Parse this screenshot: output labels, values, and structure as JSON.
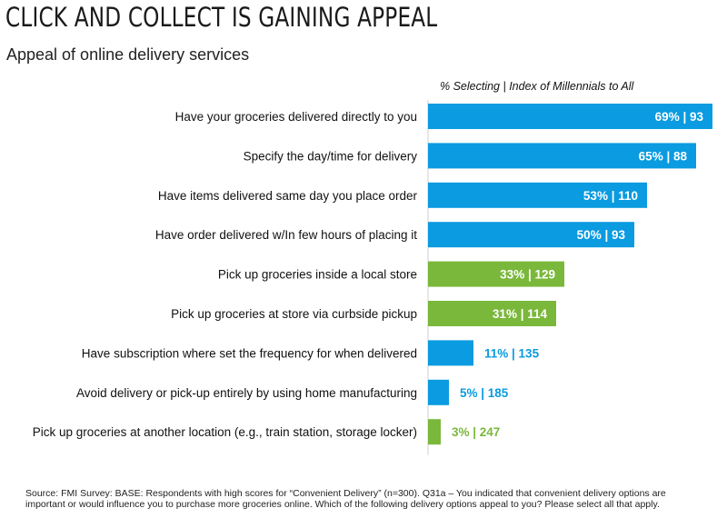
{
  "header": {
    "title": "CLICK AND COLLECT IS GAINING APPEAL",
    "subtitle": "Appeal of online delivery services",
    "column_header": "% Selecting  |  Index of Millennials to All"
  },
  "colors": {
    "blue": "#0a9be0",
    "green": "#7ab83b",
    "label_white": "#ffffff"
  },
  "chart_data": {
    "type": "bar",
    "orientation": "horizontal",
    "xlim": [
      0,
      70
    ],
    "categories": [
      "Have your groceries delivered directly to you",
      "Specify the day/time for delivery",
      "Have items delivered same day you place order",
      "Have order delivered w/In few hours of placing it",
      "Pick up groceries inside a local store",
      "Pick up groceries at store via curbside pickup",
      "Have subscription where set the frequency for when delivered",
      "Avoid delivery or pick-up entirely by using home manufacturing",
      "Pick up groceries at another location (e.g., train station, storage locker)"
    ],
    "values": [
      69,
      65,
      53,
      50,
      33,
      31,
      11,
      5,
      3
    ],
    "index_values": [
      93,
      88,
      110,
      93,
      129,
      114,
      135,
      185,
      247
    ],
    "data_labels": [
      "69%  |  93",
      "65%  |  88",
      "53%  |  110",
      "50%  |  93",
      "33%  |  129",
      "31%  |  114",
      "11%  |  135",
      "5%  |  185",
      "3%  |  247"
    ],
    "bar_colors": [
      "blue",
      "blue",
      "blue",
      "blue",
      "green",
      "green",
      "blue",
      "blue",
      "green"
    ]
  },
  "footer": {
    "source": "Source: FMI Survey: BASE: Respondents with high scores for “Convenient Delivery” (n=300). Q31a – You indicated that convenient delivery options are important or would influence you to purchase more groceries online. Which of the following delivery options appeal to you? Please select all that apply."
  }
}
